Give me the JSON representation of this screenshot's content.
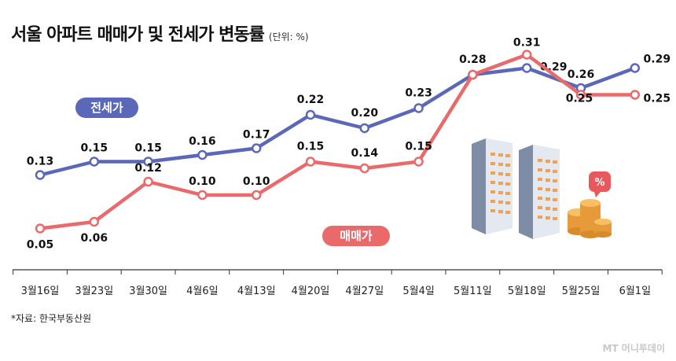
{
  "title": "서울 아파트 매매가 및 전세가 변동률",
  "unit": "(단위: %)",
  "source": "*자료: 한국부동산원",
  "watermark": "MT 머니투데이",
  "legend_labels": {
    "jeonse": "전세가",
    "maemae": "매매가"
  },
  "colors": {
    "jeonse": "#5b68b9",
    "maemae": "#ea6a6b",
    "axis": "#333333",
    "pct_badge": "#e8585d"
  },
  "chart_data": {
    "type": "line",
    "categories": [
      "3월16일",
      "3월23일",
      "3월30일",
      "4월6일",
      "4월13일",
      "4월20일",
      "4월27일",
      "5월4일",
      "5월11일",
      "5월18일",
      "5월25일",
      "6월1일"
    ],
    "series": [
      {
        "name": "전세가",
        "values": [
          0.13,
          0.15,
          0.15,
          0.16,
          0.17,
          0.22,
          0.2,
          0.23,
          0.28,
          0.29,
          0.26,
          0.29
        ],
        "labels": [
          "0.13",
          "0.15",
          "0.15",
          "0.16",
          "0.17",
          "0.22",
          "0.20",
          "0.23",
          "0.28",
          "0.29",
          "0.26",
          "0.29"
        ]
      },
      {
        "name": "매매가",
        "values": [
          0.05,
          0.06,
          0.12,
          0.1,
          0.1,
          0.15,
          0.14,
          0.15,
          0.28,
          0.31,
          0.25,
          0.25
        ],
        "labels": [
          "0.05",
          "0.06",
          "0.12",
          "0.10",
          "0.10",
          "0.15",
          "0.14",
          "0.15",
          "",
          "0.31",
          "0.25",
          "0.25"
        ]
      }
    ],
    "ylim": [
      0.0,
      0.33
    ],
    "grid": false,
    "icon": "apartment-buildings-and-coins-illustration",
    "badge_text": "%"
  }
}
